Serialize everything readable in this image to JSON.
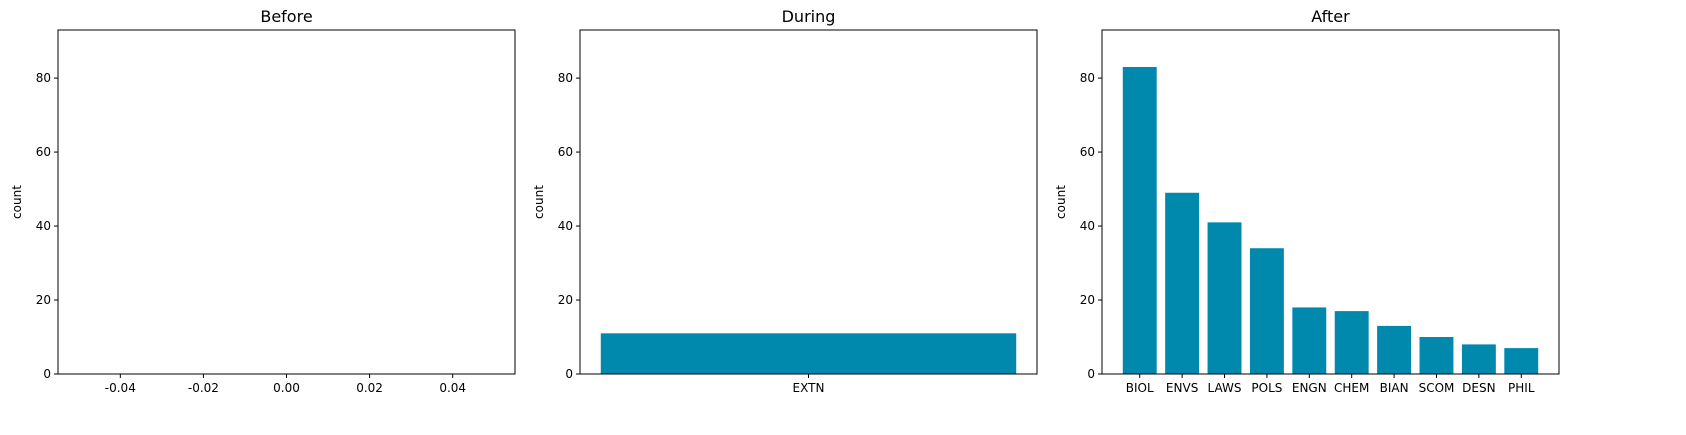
{
  "chart_data": [
    {
      "type": "bar",
      "title": "Before",
      "xlabel": "",
      "ylabel": "count",
      "categories": [],
      "values": [],
      "ylim": [
        0,
        93
      ],
      "yticks": [
        0,
        20,
        40,
        60,
        80
      ],
      "xlim": [
        -0.055,
        0.055
      ],
      "xticks": [
        "-0.04",
        "-0.02",
        "0.00",
        "0.02",
        "0.04"
      ],
      "xtick_values": [
        -0.04,
        -0.02,
        0.0,
        0.02,
        0.04
      ],
      "grid": false,
      "color": "#0088ad"
    },
    {
      "type": "bar",
      "title": "During",
      "xlabel": "",
      "ylabel": "count",
      "categories": [
        "EXTN"
      ],
      "values": [
        11
      ],
      "ylim": [
        0,
        93
      ],
      "yticks": [
        0,
        20,
        40,
        60,
        80
      ],
      "grid": false,
      "color": "#0088ad"
    },
    {
      "type": "bar",
      "title": "After",
      "xlabel": "",
      "ylabel": "count",
      "categories": [
        "BIOL",
        "ENVS",
        "LAWS",
        "POLS",
        "ENGN",
        "CHEM",
        "BIAN",
        "SCOM",
        "DESN",
        "PHIL"
      ],
      "values": [
        83,
        49,
        41,
        34,
        18,
        17,
        13,
        10,
        8,
        7
      ],
      "ylim": [
        0,
        93
      ],
      "yticks": [
        0,
        20,
        40,
        60,
        80
      ],
      "grid": false,
      "color": "#0088ad"
    }
  ]
}
